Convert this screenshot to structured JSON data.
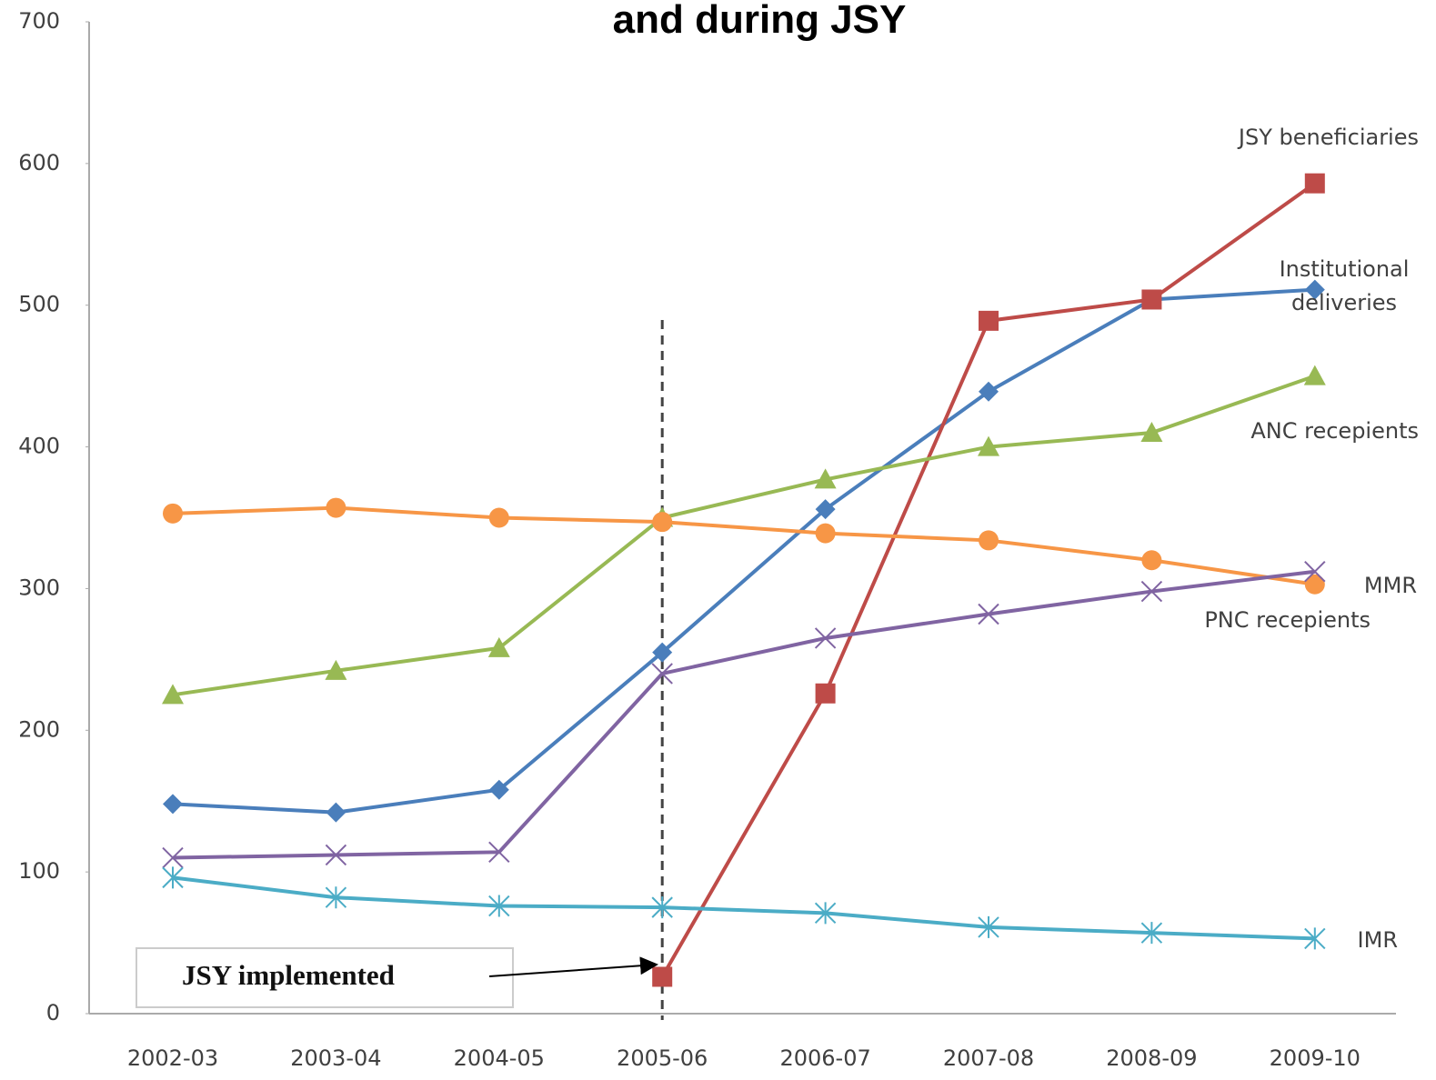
{
  "chart_data": {
    "type": "line",
    "title": "and during JSY",
    "categories": [
      "2002-03",
      "2003-04",
      "2004-05",
      "2005-06",
      "2006-07",
      "2007-08",
      "2008-09",
      "2009-10"
    ],
    "series": [
      {
        "name": "Institutional deliveries",
        "color": "#4a7ebb",
        "marker": "diamond",
        "values": [
          148,
          142,
          158,
          255,
          356,
          439,
          504,
          511
        ]
      },
      {
        "name": "JSY beneficiaries",
        "color": "#be4b48",
        "marker": "square",
        "values": [
          null,
          null,
          null,
          26,
          226,
          489,
          504,
          586
        ]
      },
      {
        "name": "ANC recepients",
        "color": "#98b954",
        "marker": "triangle",
        "values": [
          225,
          242,
          258,
          350,
          377,
          400,
          410,
          450
        ]
      },
      {
        "name": "MMR",
        "color": "#f79646",
        "marker": "circle",
        "values": [
          353,
          357,
          350,
          347,
          339,
          334,
          320,
          303
        ]
      },
      {
        "name": "PNC recepients",
        "color": "#8064a2",
        "marker": "x",
        "values": [
          110,
          112,
          114,
          240,
          265,
          282,
          298,
          312
        ]
      },
      {
        "name": "IMR",
        "color": "#4bacc6",
        "marker": "star",
        "values": [
          96,
          82,
          76,
          75,
          71,
          61,
          57,
          53
        ]
      }
    ],
    "annotation": "JSY implemented",
    "ylim": [
      0,
      700
    ],
    "yticks": [
      0,
      100,
      200,
      300,
      400,
      500,
      600,
      700
    ],
    "grid": false
  }
}
